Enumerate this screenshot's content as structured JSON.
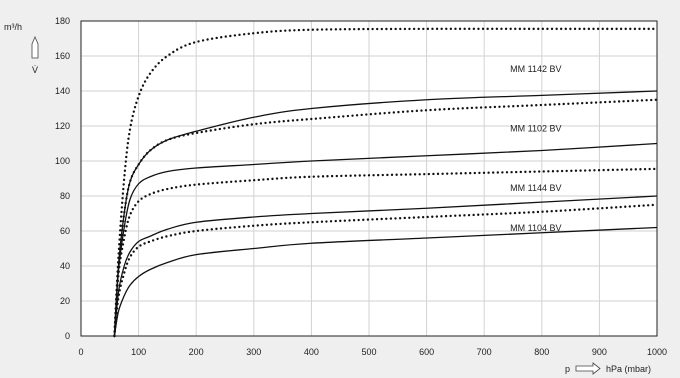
{
  "chart_data": {
    "type": "line",
    "xlabel_symbol": "p",
    "xlabel": "hPa (mbar)",
    "ylabel_unit": "m³/h",
    "ylabel_symbol": "V̇",
    "xlim": [
      0,
      1000
    ],
    "ylim": [
      0,
      180
    ],
    "xticks": [
      0,
      100,
      200,
      300,
      400,
      500,
      600,
      700,
      800,
      900,
      1000
    ],
    "yticks": [
      0,
      20,
      40,
      60,
      80,
      100,
      120,
      140,
      160,
      180
    ],
    "grid": true,
    "annotations": [
      {
        "text": "MM 1142 BV",
        "x": 745,
        "y": 151
      },
      {
        "text": "MM 1102 BV",
        "x": 745,
        "y": 117
      },
      {
        "text": "MM 1144 BV",
        "x": 745,
        "y": 83
      },
      {
        "text": "MM 1104 BV",
        "x": 745,
        "y": 60
      }
    ],
    "series": [
      {
        "style": "dotted",
        "x": [
          58,
          65,
          75,
          85,
          100,
          120,
          150,
          200,
          300,
          400,
          600,
          800,
          1000
        ],
        "y": [
          0,
          45,
          90,
          118,
          137,
          150,
          160,
          168,
          173,
          175,
          175.5,
          175.5,
          175.5
        ]
      },
      {
        "style": "solid",
        "x": [
          58,
          65,
          75,
          85,
          100,
          120,
          150,
          200,
          300,
          400,
          600,
          800,
          1000
        ],
        "y": [
          0,
          40,
          70,
          88,
          98,
          106,
          112,
          117,
          125,
          130,
          135,
          137.5,
          140
        ]
      },
      {
        "style": "dotted",
        "x": [
          58,
          65,
          75,
          85,
          100,
          120,
          150,
          200,
          300,
          400,
          600,
          800,
          1000
        ],
        "y": [
          0,
          40,
          70,
          88,
          98,
          106,
          112,
          116,
          121,
          124,
          129,
          132,
          135
        ]
      },
      {
        "style": "solid",
        "x": [
          58,
          65,
          75,
          85,
          100,
          120,
          150,
          200,
          300,
          400,
          600,
          800,
          1000
        ],
        "y": [
          0,
          37,
          62,
          78,
          87,
          91,
          94,
          96,
          98,
          100,
          103,
          106,
          110
        ]
      },
      {
        "style": "dotted",
        "x": [
          58,
          65,
          75,
          85,
          100,
          120,
          150,
          200,
          300,
          400,
          600,
          800,
          1000
        ],
        "y": [
          0,
          35,
          56,
          69,
          77,
          81,
          84,
          86.5,
          89,
          91,
          92.5,
          94,
          95.5
        ]
      },
      {
        "style": "solid",
        "x": [
          58,
          65,
          75,
          85,
          100,
          120,
          150,
          200,
          300,
          400,
          600,
          800,
          1000
        ],
        "y": [
          0,
          25,
          40,
          48,
          54,
          57,
          61,
          65,
          68,
          70,
          73,
          76.5,
          80
        ]
      },
      {
        "style": "dotted",
        "x": [
          58,
          65,
          75,
          85,
          100,
          120,
          150,
          200,
          300,
          400,
          600,
          800,
          1000
        ],
        "y": [
          0,
          22,
          36,
          45,
          51,
          54,
          57,
          60,
          63,
          65,
          68,
          71,
          75
        ]
      },
      {
        "style": "solid",
        "x": [
          58,
          65,
          75,
          85,
          100,
          120,
          150,
          200,
          300,
          400,
          600,
          800,
          1000
        ],
        "y": [
          0,
          14,
          23,
          29,
          34,
          38,
          42,
          46.5,
          50,
          53,
          56,
          59,
          62
        ]
      }
    ]
  }
}
